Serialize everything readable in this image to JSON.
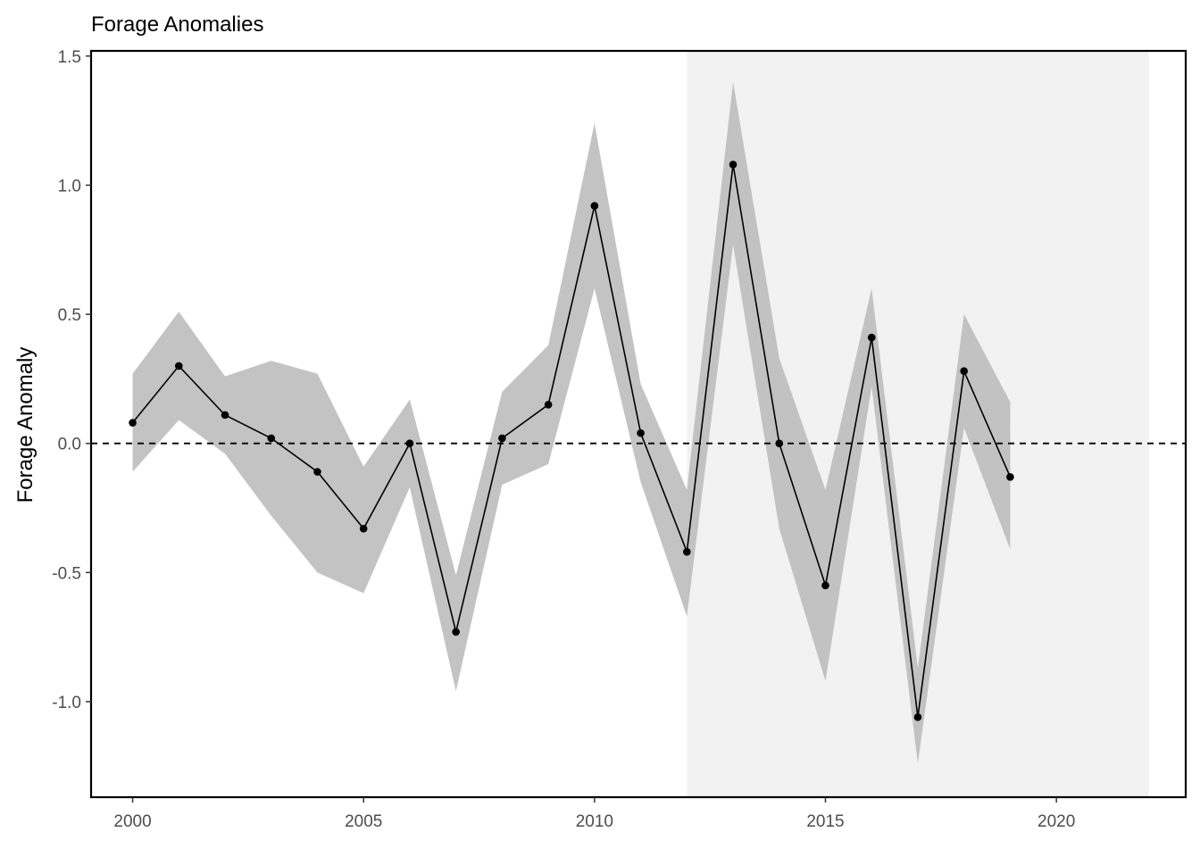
{
  "chart_data": {
    "type": "line",
    "title": "Forage Anomalies",
    "xlabel": "",
    "ylabel": "Forage Anomaly",
    "xlim": [
      1999.1,
      2022.8
    ],
    "ylim": [
      -1.37,
      1.52
    ],
    "x_ticks": [
      2000,
      2005,
      2010,
      2015,
      2020
    ],
    "y_ticks": [
      1.5,
      1.0,
      0.5,
      0.0,
      -0.5,
      -1.0
    ],
    "x_tick_labels": [
      "2000",
      "2005",
      "2010",
      "2015",
      "2020"
    ],
    "y_tick_labels": [
      "1.5",
      "1.0",
      "0.5",
      "0.0",
      "-0.5",
      "-1.0"
    ],
    "grid": false,
    "legend": "none",
    "reference_line": {
      "y": 0.0,
      "style": "dashed",
      "color": "#000000"
    },
    "shaded_region": {
      "x_start": 2012,
      "x_end": 2022,
      "color": "#f2f2f2"
    },
    "series": [
      {
        "x": [
          2000,
          2001,
          2002,
          2003,
          2004,
          2005,
          2006,
          2007,
          2008,
          2009,
          2010,
          2011,
          2012,
          2013,
          2014,
          2015,
          2016,
          2017,
          2018,
          2019
        ],
        "values": [
          0.08,
          0.3,
          0.11,
          0.02,
          -0.11,
          -0.33,
          0.0,
          -0.73,
          0.02,
          0.15,
          0.92,
          0.04,
          -0.42,
          1.08,
          0.0,
          -0.55,
          0.41,
          -1.06,
          0.28,
          -0.13
        ],
        "lower": [
          -0.11,
          0.09,
          -0.04,
          -0.28,
          -0.5,
          -0.58,
          -0.17,
          -0.96,
          -0.16,
          -0.08,
          0.6,
          -0.15,
          -0.67,
          0.77,
          -0.33,
          -0.92,
          0.22,
          -1.24,
          0.06,
          -0.41
        ],
        "upper": [
          0.27,
          0.51,
          0.26,
          0.32,
          0.27,
          -0.09,
          0.17,
          -0.51,
          0.2,
          0.38,
          1.24,
          0.23,
          -0.18,
          1.4,
          0.33,
          -0.18,
          0.6,
          -0.87,
          0.5,
          0.16
        ],
        "line_color": "#000000",
        "band_color": "#bebebe"
      }
    ]
  }
}
